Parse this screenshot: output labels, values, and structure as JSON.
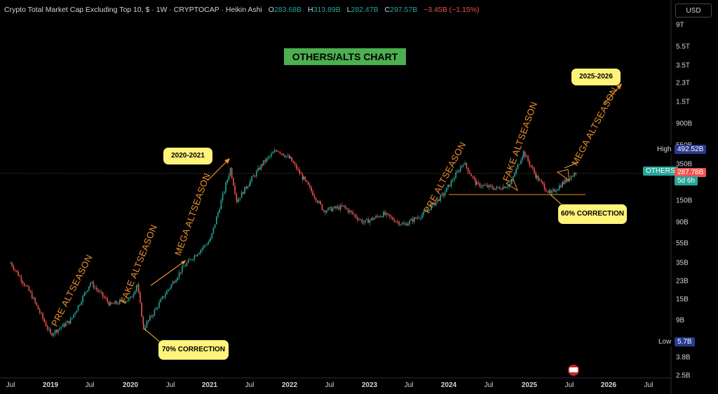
{
  "header": {
    "title": "Crypto Total Market Cap Excluding Top 10, $ · 1W · CRYPTOCAP · Heikin Ashi",
    "o_label": "O",
    "o_value": "283.68B",
    "h_label": "H",
    "h_value": "313.89B",
    "l_label": "L",
    "l_value": "282.47B",
    "c_label": "C",
    "c_value": "297.57B",
    "change": "−3.45B (−1.15%)"
  },
  "currency_button": "USD",
  "badges": {
    "high_label": "High",
    "high_value": "492.52B",
    "ticker_label": "OTHERS",
    "current_value": "287.78B",
    "countdown": "5d 6h",
    "low_label": "Low",
    "low_value": "5.7B"
  },
  "annotations": {
    "chart_title": "OTHERS/ALTS CHART",
    "callout_2020": "2020-2021",
    "callout_2025": "2025-2026",
    "callout_70": "70% CORRECTION",
    "callout_60": "60% CORRECTION",
    "rot_pre1": "PRE ALTSEASON",
    "rot_fake1": "FAKE ALTSEASON",
    "rot_mega1": "MEGA ALTSEASON",
    "rot_pre2": "PRE ALTSEASON",
    "rot_fake2": "FAKE ALTSEASON",
    "rot_mega2": "MEGA ALTSEASON"
  },
  "colors": {
    "up": "#26a69a",
    "down": "#ef5350",
    "annotation": "#f0902e",
    "callout": "#fff37a",
    "title_bg": "#4caf50"
  },
  "chart_data": {
    "type": "line",
    "series_note": "",
    "y_scale": "log",
    "y_ticks": [
      "9T",
      "5.5T",
      "3.5T",
      "2.3T",
      "1.5T",
      "900B",
      "550B",
      "350B",
      "150B",
      "90B",
      "55B",
      "35B",
      "23B",
      "15B",
      "9B",
      "3.8B",
      "2.5B"
    ],
    "x_ticks": [
      "Jul",
      "2019",
      "Jul",
      "2020",
      "Jul",
      "2021",
      "Jul",
      "2022",
      "Jul",
      "2023",
      "Jul",
      "2024",
      "Jul",
      "2025",
      "Jul",
      "2026",
      "Jul"
    ],
    "x": [
      "2018-07",
      "2018-10",
      "2019-01",
      "2019-04",
      "2019-07",
      "2019-10",
      "2020-01",
      "2020-02",
      "2020-03",
      "2020-06",
      "2020-09",
      "2021-01",
      "2021-04",
      "2021-05",
      "2021-07",
      "2021-09",
      "2021-11",
      "2022-01",
      "2022-03",
      "2022-06",
      "2022-09",
      "2022-12",
      "2023-03",
      "2023-06",
      "2023-09",
      "2023-12",
      "2024-03",
      "2024-05",
      "2024-08",
      "2024-10",
      "2024-12",
      "2025-02",
      "2025-04",
      "2025-06",
      "2025-08"
    ],
    "values": [
      35,
      17,
      6.5,
      9,
      22,
      13,
      15,
      21,
      7.5,
      16,
      32,
      60,
      320,
      150,
      240,
      370,
      500,
      400,
      250,
      120,
      130,
      90,
      110,
      85,
      110,
      175,
      370,
      220,
      200,
      220,
      470,
      260,
      175,
      230,
      298
    ],
    "support_level": 175,
    "high": 492.52,
    "low": 5.7,
    "current": 287.78
  }
}
